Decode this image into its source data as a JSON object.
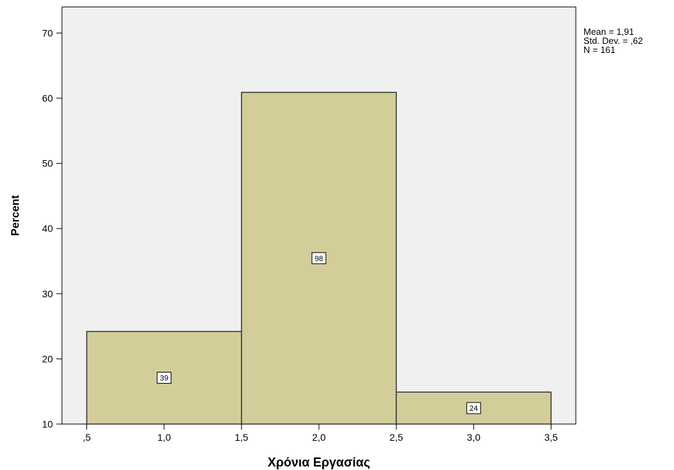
{
  "chart_data": {
    "type": "bar",
    "xlabel": "Χρόνια Εργασίας",
    "ylabel": "Percent",
    "x_ticks": [
      0.5,
      1.0,
      1.5,
      2.0,
      2.5,
      3.0,
      3.5
    ],
    "x_tick_labels": [
      ",5",
      "1,0",
      "1,5",
      "2,0",
      "2,5",
      "3,0",
      "3,5"
    ],
    "xlim": [
      0.34,
      3.66
    ],
    "y_ticks": [
      10,
      20,
      30,
      40,
      50,
      60,
      70
    ],
    "y_tick_labels": [
      "10",
      "20",
      "30",
      "40",
      "50",
      "60",
      "70"
    ],
    "ylim": [
      10,
      74
    ],
    "bins": [
      {
        "from": 0.5,
        "to": 1.5,
        "percent": 24.2,
        "count_label": "39"
      },
      {
        "from": 1.5,
        "to": 2.5,
        "percent": 60.9,
        "count_label": "98"
      },
      {
        "from": 2.5,
        "to": 3.5,
        "percent": 14.9,
        "count_label": "24"
      }
    ],
    "stats": [
      "Mean = 1,91",
      "Std. Dev. = ,62",
      "N = 161"
    ],
    "colors": {
      "plot_background": "#f0f0f0",
      "bar_fill": "#d3ce99",
      "bar_stroke": "#3a3a3a",
      "axis": "#000000"
    },
    "grid": false,
    "legend": "none"
  }
}
